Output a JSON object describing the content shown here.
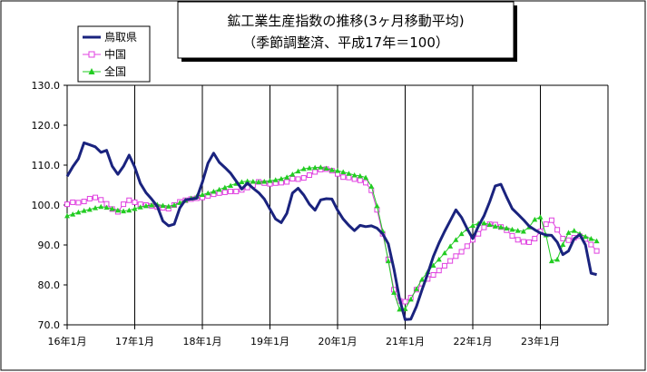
{
  "chart_data": {
    "type": "line",
    "title": "鉱工業生産指数の推移(3ヶ月移動平均)",
    "subtitle": "（季節調整済、平成17年＝100）",
    "xlabel": "",
    "ylabel": "",
    "ylim": [
      70,
      130
    ],
    "y_ticks": [
      "130.0",
      "120.0",
      "110.0",
      "100.0",
      "90.0",
      "80.0",
      "70.0"
    ],
    "x_tick_labels": [
      "16年1月",
      "17年1月",
      "18年1月",
      "19年1月",
      "20年1月",
      "21年1月",
      "22年1月",
      "23年1月"
    ],
    "grid": "vertical at each year, horizontal at 130 and 70",
    "legend": "top-left",
    "series": [
      {
        "name": "鳥取県",
        "color": "#1a237e",
        "marker": "none",
        "values": [
          107.2,
          109.6,
          111.6,
          115.6,
          115.1,
          114.6,
          113.2,
          113.7,
          109.7,
          107.7,
          109.7,
          112.5,
          109.5,
          105.4,
          103.1,
          101.5,
          99.7,
          96.0,
          94.8,
          95.2,
          99.3,
          101.3,
          101.5,
          101.7,
          105.7,
          110.5,
          113.0,
          110.7,
          109.4,
          108.0,
          106.0,
          104.0,
          105.5,
          104.2,
          103.1,
          101.5,
          99.0,
          96.5,
          95.6,
          97.9,
          103.0,
          104.2,
          102.5,
          100.2,
          98.7,
          101.3,
          101.6,
          101.5,
          98.7,
          96.5,
          94.9,
          93.6,
          94.9,
          94.6,
          94.8,
          94.2,
          92.8,
          90.3,
          84.0,
          76.5,
          71.3,
          71.4,
          74.6,
          78.8,
          82.8,
          87.1,
          90.5,
          93.4,
          96.1,
          98.8,
          96.9,
          94.1,
          91.6,
          94.7,
          97.3,
          100.8,
          104.8,
          105.2,
          102.0,
          99.1,
          97.7,
          96.3,
          94.7,
          93.8,
          93.0,
          92.5,
          92.4,
          90.7,
          87.6,
          88.5,
          91.6,
          92.6,
          90.0,
          82.9,
          82.6
        ]
      },
      {
        "name": "中国",
        "color": "#e040e0",
        "marker": "open-square",
        "values": [
          100.2,
          100.7,
          100.6,
          100.9,
          101.6,
          101.9,
          101.3,
          100.3,
          99.0,
          98.3,
          100.2,
          101.2,
          100.7,
          100.2,
          100.0,
          99.8,
          99.5,
          99.3,
          99.1,
          100.0,
          100.8,
          101.2,
          101.5,
          101.7,
          101.9,
          102.3,
          102.7,
          103.0,
          103.2,
          103.4,
          103.4,
          103.8,
          104.4,
          105.0,
          105.8,
          105.5,
          105.3,
          105.5,
          105.6,
          105.8,
          106.6,
          106.5,
          106.8,
          107.5,
          108.3,
          108.9,
          109.0,
          108.6,
          107.8,
          107.0,
          106.9,
          106.5,
          106.2,
          105.6,
          103.7,
          98.8,
          92.8,
          86.4,
          78.8,
          76.0,
          75.8,
          76.8,
          78.8,
          80.3,
          81.5,
          82.5,
          83.6,
          84.8,
          86.0,
          87.2,
          88.3,
          89.7,
          91.3,
          92.8,
          94.4,
          95.2,
          95.1,
          94.5,
          93.7,
          92.3,
          91.3,
          90.8,
          90.7,
          91.6,
          93.4,
          95.2,
          96.2,
          93.8,
          91.6,
          91.2,
          91.8,
          92.2,
          91.5,
          90.1,
          88.5
        ]
      },
      {
        "name": "全国",
        "color": "#22cc22",
        "marker": "triangle",
        "values": [
          97.3,
          97.7,
          98.2,
          98.6,
          98.9,
          99.3,
          99.6,
          99.4,
          99.1,
          98.7,
          98.5,
          98.7,
          99.1,
          99.5,
          99.8,
          100.0,
          100.1,
          99.9,
          99.7,
          100.0,
          100.6,
          101.2,
          101.7,
          102.2,
          102.6,
          103.0,
          103.4,
          103.9,
          104.4,
          104.9,
          105.4,
          105.8,
          106.0,
          105.9,
          105.8,
          105.9,
          106.1,
          106.3,
          106.6,
          107.0,
          107.7,
          108.5,
          109.1,
          109.3,
          109.4,
          109.5,
          109.2,
          108.8,
          108.6,
          108.3,
          107.9,
          107.5,
          107.3,
          106.9,
          104.7,
          99.8,
          93.5,
          86.0,
          78.1,
          73.9,
          74.0,
          76.4,
          79.0,
          81.4,
          83.3,
          84.9,
          86.4,
          88.0,
          89.7,
          91.3,
          92.8,
          94.0,
          94.9,
          95.4,
          95.5,
          95.1,
          94.7,
          94.5,
          94.2,
          93.9,
          93.6,
          93.4,
          94.5,
          96.4,
          97.0,
          92.5,
          86.0,
          86.4,
          90.1,
          93.1,
          93.6,
          92.8,
          92.1,
          91.6,
          91.0
        ]
      }
    ]
  }
}
